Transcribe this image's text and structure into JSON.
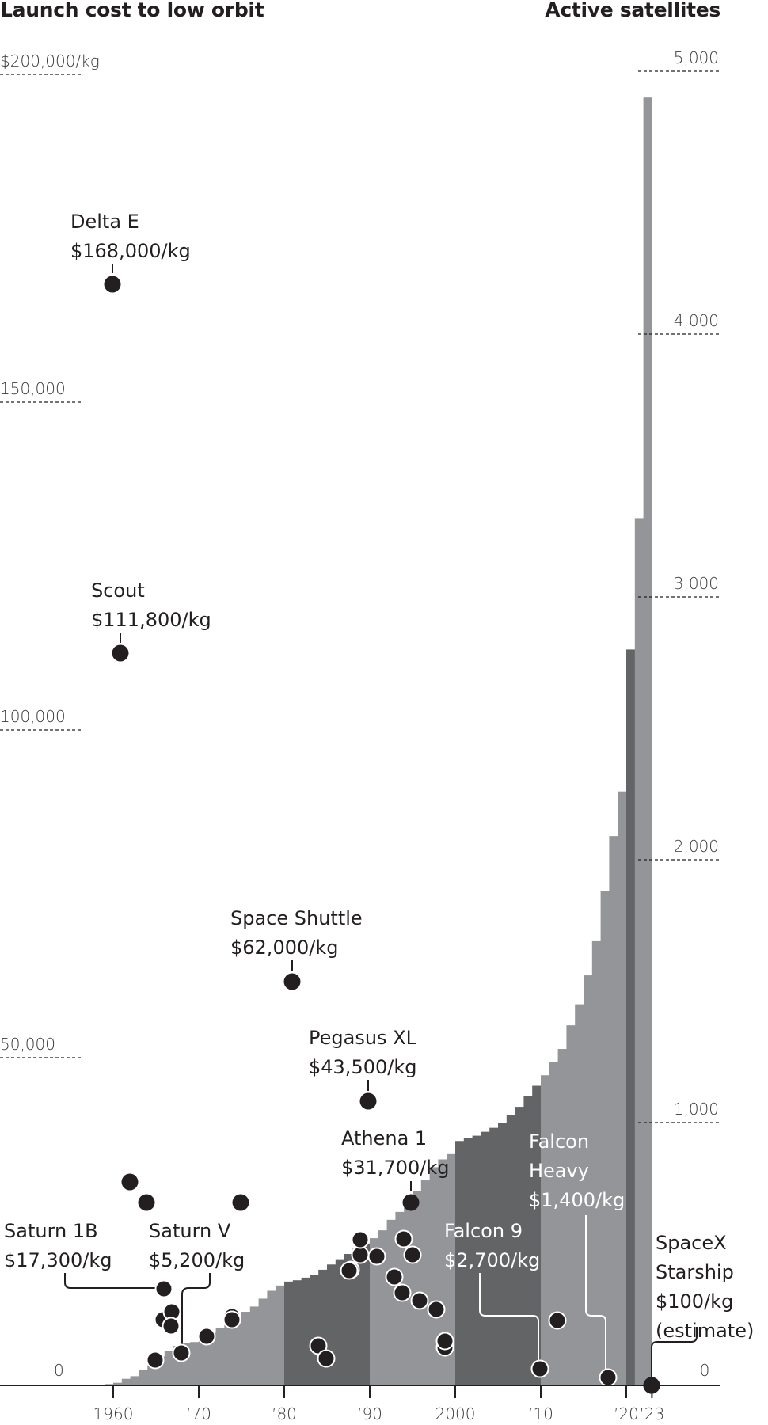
{
  "header": {
    "left_title": "Launch cost to low orbit",
    "right_title": "Active satellites"
  },
  "colors": {
    "ink": "#231f20",
    "bar_light": "#939598",
    "bar_dark": "#636466",
    "white": "#ffffff"
  },
  "left_axis": {
    "ticks": [
      {
        "label": "$200,000/kg",
        "value": 200000
      },
      {
        "label": "150,000",
        "value": 150000
      },
      {
        "label": "100,000",
        "value": 100000
      },
      {
        "label": "50,000",
        "value": 50000
      },
      {
        "label": "0",
        "value": 0
      }
    ]
  },
  "right_axis": {
    "ticks": [
      {
        "label": "5,000",
        "value": 5000
      },
      {
        "label": "4,000",
        "value": 4000
      },
      {
        "label": "3,000",
        "value": 3000
      },
      {
        "label": "2,000",
        "value": 2000
      },
      {
        "label": "1,000",
        "value": 1000
      },
      {
        "label": "0",
        "value": 0
      }
    ]
  },
  "x_axis": {
    "ticks": [
      {
        "label": "1960",
        "year": 1960
      },
      {
        "label": "’70",
        "year": 1970
      },
      {
        "label": "’80",
        "year": 1980
      },
      {
        "label": "’90",
        "year": 1990
      },
      {
        "label": "2000",
        "year": 2000
      },
      {
        "label": "’10",
        "year": 2010
      },
      {
        "label": "’20",
        "year": 2020
      },
      {
        "label": "’23",
        "year": 2023
      }
    ]
  },
  "chart_data": {
    "type": "bar",
    "title": "Launch cost to low orbit vs. Active satellites",
    "xlabel": "",
    "ylabel_left": "Launch cost to low orbit ($/kg)",
    "ylabel_right": "Active satellites",
    "ylim_left": [
      0,
      200000
    ],
    "ylim_right": [
      0,
      5000
    ],
    "grid": false,
    "series": [
      {
        "name": "Active satellites",
        "type": "bar",
        "axis": "right",
        "x": [
          1959,
          1960,
          1961,
          1962,
          1963,
          1964,
          1965,
          1966,
          1967,
          1968,
          1969,
          1970,
          1971,
          1972,
          1973,
          1974,
          1975,
          1976,
          1977,
          1978,
          1979,
          1980,
          1981,
          1982,
          1983,
          1984,
          1985,
          1986,
          1987,
          1988,
          1989,
          1990,
          1991,
          1992,
          1993,
          1994,
          1995,
          1996,
          1997,
          1998,
          1999,
          2000,
          2001,
          2002,
          2003,
          2004,
          2005,
          2006,
          2007,
          2008,
          2009,
          2010,
          2011,
          2012,
          2013,
          2014,
          2015,
          2016,
          2017,
          2018,
          2019,
          2020,
          2021,
          2022
        ],
        "values": [
          5,
          10,
          25,
          35,
          60,
          90,
          110,
          130,
          150,
          160,
          165,
          170,
          200,
          220,
          240,
          260,
          280,
          300,
          330,
          360,
          380,
          395,
          400,
          410,
          420,
          440,
          460,
          480,
          500,
          520,
          540,
          560,
          590,
          630,
          660,
          700,
          740,
          780,
          830,
          860,
          880,
          930,
          940,
          950,
          965,
          980,
          1000,
          1030,
          1060,
          1100,
          1140,
          1180,
          1230,
          1280,
          1370,
          1450,
          1560,
          1690,
          1880,
          2090,
          2260,
          2800,
          3300,
          4900
        ]
      },
      {
        "name": "Launch cost ($/kg)",
        "type": "scatter",
        "axis": "left",
        "points": [
          {
            "year": 1961,
            "value": 168000,
            "label": "Delta E",
            "cost": "$168,000/kg"
          },
          {
            "year": 1962,
            "value": 111800,
            "label": "Scout",
            "cost": "$111,800/kg"
          },
          {
            "year": 1962,
            "value": 25800
          },
          {
            "year": 1964,
            "value": 24600
          },
          {
            "year": 1966,
            "value": 17300,
            "label": "Saturn 1B",
            "cost": "$17,300/kg"
          },
          {
            "year": 1966,
            "value": 13000
          },
          {
            "year": 1967,
            "value": 13600
          },
          {
            "year": 1967,
            "value": 12300
          },
          {
            "year": 1965,
            "value": 3600
          },
          {
            "year": 1968,
            "value": 5200,
            "label": "Saturn V",
            "cost": "$5,200/kg"
          },
          {
            "year": 1971,
            "value": 10500
          },
          {
            "year": 1974,
            "value": 13200
          },
          {
            "year": 1974,
            "value": 13500
          },
          {
            "year": 1976,
            "value": 24600
          },
          {
            "year": 1981,
            "value": 62000,
            "label": "Space Shuttle",
            "cost": "$62,000/kg"
          },
          {
            "year": 1984,
            "value": 6700
          },
          {
            "year": 1985,
            "value": 5000
          },
          {
            "year": 1989,
            "value": 17800
          },
          {
            "year": 1989,
            "value": 20700
          },
          {
            "year": 1989,
            "value": 18300
          },
          {
            "year": 1989,
            "value": 22500
          },
          {
            "year": 1991,
            "value": 19800
          },
          {
            "year": 1993,
            "value": 16000
          },
          {
            "year": 1994,
            "value": 13500
          },
          {
            "year": 1994,
            "value": 22500
          },
          {
            "year": 1995,
            "value": 20000
          },
          {
            "year": 1995,
            "value": 43500,
            "label": "Pegasus XL",
            "cost": "$43,500/kg"
          },
          {
            "year": 1996,
            "value": 31700,
            "label": "Athena 1",
            "cost": "$31,700/kg"
          },
          {
            "year": 1996,
            "value": 12300
          },
          {
            "year": 1998,
            "value": 11200
          },
          {
            "year": 1999,
            "value": 7000
          },
          {
            "year": 1999,
            "value": 6000
          },
          {
            "year": 2010,
            "value": 2700,
            "label": "Falcon 9",
            "cost": "$2,700/kg"
          },
          {
            "year": 2012,
            "value": 9300
          },
          {
            "year": 2018,
            "value": 1400,
            "label": "Falcon Heavy",
            "cost": "$1,400/kg"
          },
          {
            "year": 2023,
            "value": 100,
            "label": "SpaceX Starship",
            "cost": "$100/kg (estimate)"
          }
        ]
      }
    ]
  },
  "annotations": {
    "delta_e": {
      "name": "Delta E",
      "cost": "$168,000/kg"
    },
    "scout": {
      "name": "Scout",
      "cost": "$111,800/kg"
    },
    "space_shuttle": {
      "name": "Space Shuttle",
      "cost": "$62,000/kg"
    },
    "pegasus": {
      "name": "Pegasus XL",
      "cost": "$43,500/kg"
    },
    "athena": {
      "name": "Athena 1",
      "cost": "$31,700/kg"
    },
    "saturn1b": {
      "name": "Saturn 1B",
      "cost": "$17,300/kg"
    },
    "saturnv": {
      "name": "Saturn V",
      "cost": "$5,200/kg"
    },
    "falcon9": {
      "name": "Falcon 9",
      "cost": "$2,700/kg"
    },
    "falconheavy": {
      "line1": "Falcon",
      "line2": "Heavy",
      "cost": "$1,400/kg"
    },
    "starship": {
      "line1": "SpaceX",
      "line2": "Starship",
      "cost": "$100/kg",
      "note": "(estimate)"
    }
  }
}
